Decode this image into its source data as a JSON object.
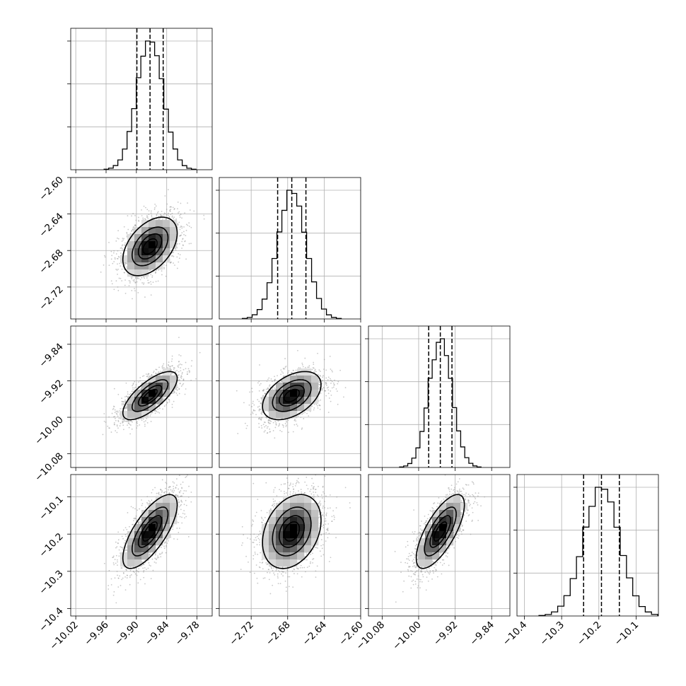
{
  "chart_data": {
    "type": "corner",
    "grid": true,
    "ticks": {
      "p0": [
        "−10.02",
        "−9.96",
        "−9.90",
        "−9.84",
        "−9.78"
      ],
      "p1": [
        "−2.72",
        "−2.68",
        "−2.64",
        "−2.60"
      ],
      "p2": [
        "−10.08",
        "−10.00",
        "−9.92",
        "−9.84"
      ],
      "p3": [
        "−10.4",
        "−10.3",
        "−10.2",
        "−10.1"
      ]
    },
    "parameters": [
      {
        "range": [
          -10.03,
          -9.75
        ],
        "ticks": [
          -10.02,
          -9.96,
          -9.9,
          -9.84,
          -9.78
        ],
        "mean": -9.873,
        "sigma": 0.026,
        "quantiles": [
          -9.899,
          -9.873,
          -9.847
        ]
      },
      {
        "range": [
          -2.755,
          -2.6
        ],
        "ticks": [
          -2.72,
          -2.68,
          -2.64,
          -2.6
        ],
        "mean": -2.6755,
        "sigma": 0.0155,
        "quantiles": [
          -2.691,
          -2.6755,
          -2.66
        ]
      },
      {
        "range": [
          -10.11,
          -9.8
        ],
        "ticks": [
          -10.08,
          -10.0,
          -9.92,
          -9.84
        ],
        "mean": -9.9525,
        "sigma": 0.0255,
        "quantiles": [
          -9.978,
          -9.9525,
          -9.927
        ]
      },
      {
        "range": [
          -10.42,
          -10.04
        ],
        "ticks": [
          -10.4,
          -10.3,
          -10.2,
          -10.1
        ],
        "mean": -10.193,
        "sigma": 0.048,
        "quantiles": [
          -10.241,
          -10.193,
          -10.145
        ]
      }
    ],
    "correlations": {
      "1-0": 0.45,
      "2-0": 0.72,
      "2-1": 0.45,
      "3-0": 0.72,
      "3-1": 0.3,
      "3-2": 0.72
    },
    "n_samples": 1600,
    "hist_bins": 20
  }
}
